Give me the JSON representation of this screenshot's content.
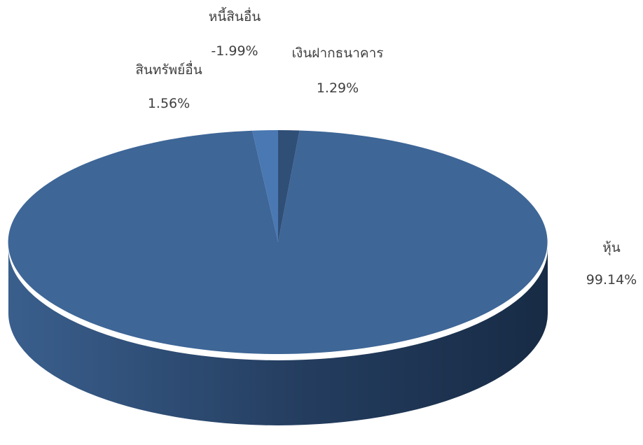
{
  "chart_data": {
    "type": "pie",
    "style": "3d",
    "title": "",
    "slices": [
      {
        "name": "หุ้น",
        "value": 99.14,
        "label": "99.14%"
      },
      {
        "name": "หนี้สินอื่น",
        "value": -1.99,
        "label": "-1.99%"
      },
      {
        "name": "สินทรัพย์อื่น",
        "value": 1.56,
        "label": "1.56%"
      },
      {
        "name": "เงินฝากธนาคาร",
        "value": 1.29,
        "label": "1.29%"
      }
    ]
  },
  "colors": {
    "stocks": "#3e6697",
    "stocks_side_light": "#3a5f8d",
    "stocks_side_dark": "#172b45",
    "other_assets": "#4978b2",
    "bank_deposits": "#2f4f77",
    "label_text": "#404040"
  }
}
